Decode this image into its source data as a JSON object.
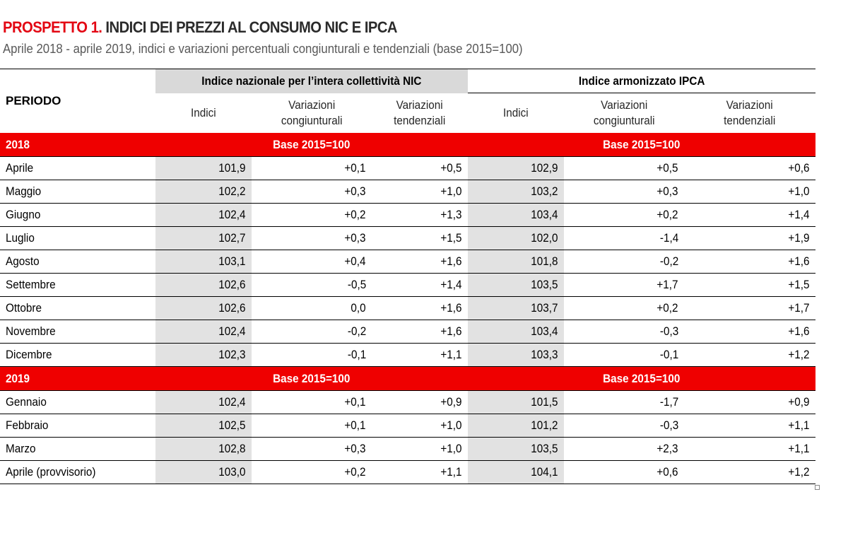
{
  "header": {
    "title_prefix": "PROSPETTO 1.",
    "title_rest": "INDICI DEI PREZZI AL CONSUMO NIC E IPCA",
    "subtitle": "Aprile 2018 - aprile 2019, indici e variazioni percentuali congiunturali e tendenziali (base 2015=100)"
  },
  "table": {
    "periodo_label": "PERIODO",
    "nic_group": "Indice nazionale  per l’intera collettività  NIC",
    "ipca_group": "Indice armonizzato  IPCA",
    "sub_headers": {
      "indici": "Indici",
      "cong_1": "Variazioni",
      "cong_2": "congiunturali",
      "tend_1": "Variazioni",
      "tend_2": "tendenziali"
    },
    "colors": {
      "year_band": "#ef0000",
      "title_red": "#e30613",
      "gray_cell": "#e2e2e2",
      "gray_header": "#d9d9d9"
    },
    "years": [
      {
        "label": "2018",
        "base_nic": "Base 2015=100",
        "base_ipca": "Base 2015=100",
        "rows": [
          {
            "periodo": "Aprile",
            "nic_idx": "101,9",
            "nic_cong": "+0,1",
            "nic_tend": "+0,5",
            "ipca_idx": "102,9",
            "ipca_cong": "+0,5",
            "ipca_tend": "+0,6"
          },
          {
            "periodo": "Maggio",
            "nic_idx": "102,2",
            "nic_cong": "+0,3",
            "nic_tend": "+1,0",
            "ipca_idx": "103,2",
            "ipca_cong": "+0,3",
            "ipca_tend": "+1,0"
          },
          {
            "periodo": "Giugno",
            "nic_idx": "102,4",
            "nic_cong": "+0,2",
            "nic_tend": "+1,3",
            "ipca_idx": "103,4",
            "ipca_cong": "+0,2",
            "ipca_tend": "+1,4"
          },
          {
            "periodo": "Luglio",
            "nic_idx": "102,7",
            "nic_cong": "+0,3",
            "nic_tend": "+1,5",
            "ipca_idx": "102,0",
            "ipca_cong": "-1,4",
            "ipca_tend": "+1,9"
          },
          {
            "periodo": "Agosto",
            "nic_idx": "103,1",
            "nic_cong": "+0,4",
            "nic_tend": "+1,6",
            "ipca_idx": "101,8",
            "ipca_cong": "-0,2",
            "ipca_tend": "+1,6"
          },
          {
            "periodo": "Settembre",
            "nic_idx": "102,6",
            "nic_cong": "-0,5",
            "nic_tend": "+1,4",
            "ipca_idx": "103,5",
            "ipca_cong": "+1,7",
            "ipca_tend": "+1,5"
          },
          {
            "periodo": "Ottobre",
            "nic_idx": "102,6",
            "nic_cong": "0,0",
            "nic_tend": "+1,6",
            "ipca_idx": "103,7",
            "ipca_cong": "+0,2",
            "ipca_tend": "+1,7"
          },
          {
            "periodo": "Novembre",
            "nic_idx": "102,4",
            "nic_cong": "-0,2",
            "nic_tend": "+1,6",
            "ipca_idx": "103,4",
            "ipca_cong": "-0,3",
            "ipca_tend": "+1,6"
          },
          {
            "periodo": "Dicembre",
            "nic_idx": "102,3",
            "nic_cong": "-0,1",
            "nic_tend": "+1,1",
            "ipca_idx": "103,3",
            "ipca_cong": "-0,1",
            "ipca_tend": "+1,2"
          }
        ]
      },
      {
        "label": "2019",
        "base_nic": "Base 2015=100",
        "base_ipca": "Base 2015=100",
        "rows": [
          {
            "periodo": "Gennaio",
            "nic_idx": "102,4",
            "nic_cong": "+0,1",
            "nic_tend": "+0,9",
            "ipca_idx": "101,5",
            "ipca_cong": "-1,7",
            "ipca_tend": "+0,9"
          },
          {
            "periodo": "Febbraio",
            "nic_idx": "102,5",
            "nic_cong": "+0,1",
            "nic_tend": "+1,0",
            "ipca_idx": "101,2",
            "ipca_cong": "-0,3",
            "ipca_tend": "+1,1"
          },
          {
            "periodo": "Marzo",
            "nic_idx": "102,8",
            "nic_cong": "+0,3",
            "nic_tend": "+1,0",
            "ipca_idx": "103,5",
            "ipca_cong": "+2,3",
            "ipca_tend": "+1,1"
          },
          {
            "periodo": "Aprile (provvisorio)",
            "nic_idx": "103,0",
            "nic_cong": "+0,2",
            "nic_tend": "+1,1",
            "ipca_idx": "104,1",
            "ipca_cong": "+0,6",
            "ipca_tend": "+1,2"
          }
        ]
      }
    ]
  }
}
